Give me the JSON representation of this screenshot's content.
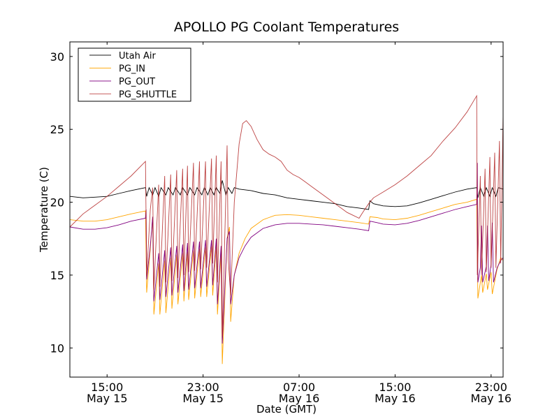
{
  "chart_data": {
    "type": "line",
    "title": "APOLLO PG Coolant Temperatures",
    "xlabel": "Date (GMT)",
    "ylabel": "Temperature (C)",
    "x_units": "hours since 00:00 May 15 (GMT)",
    "xlim": [
      11.9,
      48.0
    ],
    "ylim": [
      8,
      31
    ],
    "grid": false,
    "legend_position": "top-left",
    "x_ticks": [
      {
        "value": 15,
        "label_time": "15:00",
        "label_date": "May 15"
      },
      {
        "value": 23,
        "label_time": "23:00",
        "label_date": "May 15"
      },
      {
        "value": 31,
        "label_time": "07:00",
        "label_date": "May 16"
      },
      {
        "value": 39,
        "label_time": "15:00",
        "label_date": "May 16"
      },
      {
        "value": 47,
        "label_time": "23:00",
        "label_date": "May 16"
      }
    ],
    "y_ticks": [
      10,
      15,
      20,
      25,
      30
    ],
    "series": [
      {
        "name": "Utah Air",
        "color": "#000000",
        "points": [
          [
            11.9,
            20.4
          ],
          [
            13,
            20.3
          ],
          [
            14,
            20.35
          ],
          [
            15,
            20.4
          ],
          [
            16,
            20.6
          ],
          [
            17,
            20.8
          ],
          [
            18.2,
            21.0
          ],
          [
            18.3,
            20.4
          ],
          [
            18.5,
            21.0
          ],
          [
            18.8,
            20.5
          ],
          [
            19.0,
            21.0
          ],
          [
            19.3,
            20.4
          ],
          [
            19.5,
            21.0
          ],
          [
            19.9,
            20.5
          ],
          [
            20.1,
            21.0
          ],
          [
            20.5,
            20.5
          ],
          [
            20.7,
            21.0
          ],
          [
            21.1,
            20.5
          ],
          [
            21.3,
            21.0
          ],
          [
            21.7,
            20.5
          ],
          [
            21.9,
            21.0
          ],
          [
            22.3,
            20.5
          ],
          [
            22.5,
            21.0
          ],
          [
            22.9,
            20.5
          ],
          [
            23.1,
            21.0
          ],
          [
            23.4,
            20.5
          ],
          [
            23.6,
            21.0
          ],
          [
            23.9,
            20.5
          ],
          [
            24.1,
            21.0
          ],
          [
            24.4,
            20.6
          ],
          [
            24.6,
            21.5
          ],
          [
            24.9,
            20.5
          ],
          [
            25.1,
            21.0
          ],
          [
            25.4,
            20.6
          ],
          [
            25.6,
            21.0
          ],
          [
            26,
            20.9
          ],
          [
            27,
            20.8
          ],
          [
            28,
            20.6
          ],
          [
            29,
            20.5
          ],
          [
            30,
            20.3
          ],
          [
            31,
            20.2
          ],
          [
            32,
            20.1
          ],
          [
            33,
            20.0
          ],
          [
            34,
            19.9
          ],
          [
            35,
            19.7
          ],
          [
            36,
            19.6
          ],
          [
            36.8,
            19.5
          ],
          [
            36.9,
            20.1
          ],
          [
            37.2,
            19.9
          ],
          [
            38,
            19.75
          ],
          [
            39,
            19.7
          ],
          [
            40,
            19.75
          ],
          [
            41,
            19.95
          ],
          [
            42,
            20.2
          ],
          [
            43,
            20.45
          ],
          [
            44,
            20.7
          ],
          [
            45,
            20.9
          ],
          [
            45.8,
            21.0
          ],
          [
            45.9,
            20.3
          ],
          [
            46.1,
            21.0
          ],
          [
            46.4,
            20.4
          ],
          [
            46.6,
            21.0
          ],
          [
            46.9,
            20.4
          ],
          [
            47.1,
            21.0
          ],
          [
            47.4,
            20.4
          ],
          [
            47.6,
            21.0
          ],
          [
            48.0,
            20.9
          ]
        ]
      },
      {
        "name": "PG_IN",
        "color": "#FFA500",
        "points": [
          [
            11.9,
            18.8
          ],
          [
            13,
            18.7
          ],
          [
            14,
            18.7
          ],
          [
            15,
            18.8
          ],
          [
            16,
            19.0
          ],
          [
            17,
            19.2
          ],
          [
            18.2,
            19.4
          ],
          [
            18.3,
            13.8
          ],
          [
            18.6,
            16.8
          ],
          [
            18.8,
            19.0
          ],
          [
            18.9,
            12.3
          ],
          [
            19.3,
            15.8
          ],
          [
            19.4,
            12.3
          ],
          [
            19.8,
            16.0
          ],
          [
            19.9,
            12.4
          ],
          [
            20.3,
            16.2
          ],
          [
            20.4,
            12.7
          ],
          [
            20.8,
            16.4
          ],
          [
            20.9,
            13.0
          ],
          [
            21.3,
            16.5
          ],
          [
            21.4,
            13.2
          ],
          [
            21.7,
            16.6
          ],
          [
            21.8,
            13.3
          ],
          [
            22.2,
            16.7
          ],
          [
            22.3,
            13.4
          ],
          [
            22.7,
            16.8
          ],
          [
            22.8,
            13.5
          ],
          [
            23.2,
            16.9
          ],
          [
            23.3,
            13.5
          ],
          [
            23.7,
            17.0
          ],
          [
            23.8,
            13.6
          ],
          [
            24.1,
            17.0
          ],
          [
            24.2,
            12.3
          ],
          [
            24.5,
            16.5
          ],
          [
            24.6,
            8.9
          ],
          [
            25.0,
            17.5
          ],
          [
            25.2,
            18.3
          ],
          [
            25.3,
            11.8
          ],
          [
            25.6,
            15.0
          ],
          [
            26.0,
            16.5
          ],
          [
            26.5,
            17.5
          ],
          [
            27,
            18.2
          ],
          [
            28,
            18.8
          ],
          [
            29,
            19.1
          ],
          [
            30,
            19.15
          ],
          [
            31,
            19.1
          ],
          [
            32,
            19.0
          ],
          [
            33,
            18.9
          ],
          [
            34,
            18.8
          ],
          [
            35,
            18.7
          ],
          [
            36,
            18.6
          ],
          [
            36.8,
            18.5
          ],
          [
            36.9,
            19.0
          ],
          [
            37.5,
            18.95
          ],
          [
            38,
            18.85
          ],
          [
            39,
            18.8
          ],
          [
            40,
            18.9
          ],
          [
            41,
            19.1
          ],
          [
            42,
            19.35
          ],
          [
            43,
            19.6
          ],
          [
            44,
            19.85
          ],
          [
            45,
            20.0
          ],
          [
            45.8,
            20.2
          ],
          [
            45.9,
            13.4
          ],
          [
            46.2,
            15.0
          ],
          [
            46.3,
            13.8
          ],
          [
            46.6,
            15.1
          ],
          [
            46.7,
            14.0
          ],
          [
            47.0,
            15.2
          ],
          [
            47.1,
            13.7
          ],
          [
            47.5,
            15.4
          ],
          [
            47.8,
            16.2
          ],
          [
            48.0,
            16.0
          ]
        ]
      },
      {
        "name": "PG_OUT",
        "color": "#800080",
        "points": [
          [
            11.9,
            18.3
          ],
          [
            13,
            18.15
          ],
          [
            14,
            18.15
          ],
          [
            15,
            18.25
          ],
          [
            16,
            18.45
          ],
          [
            17,
            18.7
          ],
          [
            18.2,
            18.9
          ],
          [
            18.25,
            19.5
          ],
          [
            18.3,
            14.7
          ],
          [
            18.6,
            17.0
          ],
          [
            18.8,
            19.0
          ],
          [
            18.9,
            13.2
          ],
          [
            19.3,
            16.5
          ],
          [
            19.4,
            13.3
          ],
          [
            19.8,
            16.7
          ],
          [
            19.9,
            13.5
          ],
          [
            20.3,
            16.9
          ],
          [
            20.4,
            13.6
          ],
          [
            20.8,
            17.0
          ],
          [
            20.9,
            13.8
          ],
          [
            21.3,
            17.1
          ],
          [
            21.4,
            13.9
          ],
          [
            21.7,
            17.2
          ],
          [
            21.8,
            14.0
          ],
          [
            22.2,
            17.3
          ],
          [
            22.3,
            14.1
          ],
          [
            22.7,
            17.3
          ],
          [
            22.8,
            14.1
          ],
          [
            23.2,
            17.4
          ],
          [
            23.3,
            14.2
          ],
          [
            23.7,
            17.4
          ],
          [
            23.8,
            14.3
          ],
          [
            24.1,
            17.5
          ],
          [
            24.2,
            13.0
          ],
          [
            24.5,
            17.0
          ],
          [
            24.6,
            10.3
          ],
          [
            25.0,
            17.5
          ],
          [
            25.2,
            18.0
          ],
          [
            25.3,
            13.0
          ],
          [
            25.6,
            15.0
          ],
          [
            26.0,
            16.2
          ],
          [
            26.5,
            17.0
          ],
          [
            27,
            17.6
          ],
          [
            28,
            18.2
          ],
          [
            29,
            18.45
          ],
          [
            30,
            18.55
          ],
          [
            31,
            18.55
          ],
          [
            32,
            18.5
          ],
          [
            33,
            18.45
          ],
          [
            34,
            18.35
          ],
          [
            35,
            18.25
          ],
          [
            36,
            18.15
          ],
          [
            36.8,
            18.05
          ],
          [
            36.9,
            18.7
          ],
          [
            37.5,
            18.6
          ],
          [
            38,
            18.5
          ],
          [
            39,
            18.45
          ],
          [
            40,
            18.55
          ],
          [
            41,
            18.75
          ],
          [
            42,
            19.0
          ],
          [
            43,
            19.25
          ],
          [
            44,
            19.5
          ],
          [
            45,
            19.7
          ],
          [
            45.8,
            19.85
          ],
          [
            45.85,
            22.7
          ],
          [
            45.9,
            14.5
          ],
          [
            46.1,
            15.5
          ],
          [
            46.2,
            18.4
          ],
          [
            46.3,
            14.5
          ],
          [
            46.6,
            15.6
          ],
          [
            46.7,
            18.4
          ],
          [
            46.8,
            14.6
          ],
          [
            47.0,
            15.7
          ],
          [
            47.1,
            18.6
          ],
          [
            47.2,
            14.5
          ],
          [
            47.5,
            15.5
          ],
          [
            47.8,
            16.0
          ],
          [
            48.0,
            16.2
          ]
        ]
      },
      {
        "name": "PG_SHUTTLE",
        "color": "#B22222",
        "points": [
          [
            11.9,
            18.3
          ],
          [
            13,
            19.2
          ],
          [
            14,
            19.8
          ],
          [
            15,
            20.4
          ],
          [
            16,
            21.1
          ],
          [
            17,
            21.8
          ],
          [
            18.2,
            22.8
          ],
          [
            18.3,
            15.0
          ],
          [
            18.6,
            19.5
          ],
          [
            18.8,
            21.0
          ],
          [
            18.9,
            14.0
          ],
          [
            19.3,
            21.2
          ],
          [
            19.4,
            14.2
          ],
          [
            19.8,
            21.8
          ],
          [
            19.9,
            14.5
          ],
          [
            20.3,
            21.9
          ],
          [
            20.4,
            14.6
          ],
          [
            20.8,
            22.2
          ],
          [
            20.9,
            14.8
          ],
          [
            21.3,
            22.3
          ],
          [
            21.4,
            15.0
          ],
          [
            21.7,
            22.5
          ],
          [
            21.8,
            15.2
          ],
          [
            22.2,
            22.7
          ],
          [
            22.3,
            15.3
          ],
          [
            22.7,
            22.8
          ],
          [
            22.8,
            15.4
          ],
          [
            23.2,
            22.8
          ],
          [
            23.3,
            15.5
          ],
          [
            23.7,
            23.0
          ],
          [
            23.8,
            15.8
          ],
          [
            24.1,
            23.2
          ],
          [
            24.2,
            14.5
          ],
          [
            24.5,
            22.8
          ],
          [
            24.6,
            10.8
          ],
          [
            25.0,
            23.9
          ],
          [
            25.1,
            16.0
          ],
          [
            25.3,
            13.6
          ],
          [
            25.6,
            20.0
          ],
          [
            26.0,
            24.0
          ],
          [
            26.3,
            25.4
          ],
          [
            26.6,
            25.6
          ],
          [
            27,
            25.2
          ],
          [
            27.5,
            24.3
          ],
          [
            28,
            23.6
          ],
          [
            28.5,
            23.3
          ],
          [
            29,
            23.1
          ],
          [
            29.5,
            22.8
          ],
          [
            30,
            22.2
          ],
          [
            30.5,
            21.9
          ],
          [
            31,
            21.7
          ],
          [
            31.5,
            21.4
          ],
          [
            32,
            21.1
          ],
          [
            32.5,
            20.8
          ],
          [
            33,
            20.5
          ],
          [
            33.5,
            20.2
          ],
          [
            34,
            19.9
          ],
          [
            34.5,
            19.6
          ],
          [
            35,
            19.3
          ],
          [
            35.5,
            19.1
          ],
          [
            36,
            18.9
          ],
          [
            36.3,
            19.3
          ],
          [
            36.8,
            19.9
          ],
          [
            37.2,
            20.3
          ],
          [
            38,
            20.7
          ],
          [
            39,
            21.2
          ],
          [
            40,
            21.8
          ],
          [
            41,
            22.5
          ],
          [
            42,
            23.2
          ],
          [
            43,
            24.2
          ],
          [
            44,
            25.1
          ],
          [
            45,
            26.2
          ],
          [
            45.8,
            27.3
          ],
          [
            45.85,
            15.0
          ],
          [
            46.1,
            21.8
          ],
          [
            46.2,
            15.0
          ],
          [
            46.5,
            22.3
          ],
          [
            46.6,
            15.2
          ],
          [
            46.9,
            23.1
          ],
          [
            47.0,
            15.5
          ],
          [
            47.3,
            23.4
          ],
          [
            47.4,
            15.5
          ],
          [
            47.7,
            24.2
          ],
          [
            47.8,
            15.8
          ],
          [
            48.0,
            26.0
          ]
        ]
      }
    ]
  }
}
